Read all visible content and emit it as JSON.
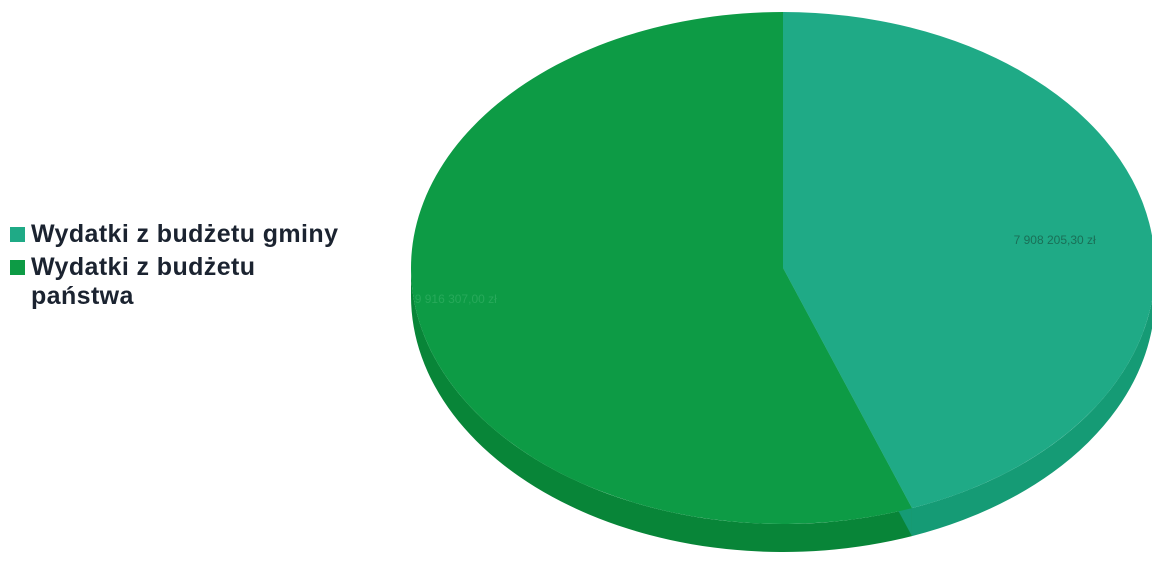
{
  "chart_data": {
    "type": "pie",
    "title": "",
    "legend_position": "left",
    "series": [
      {
        "name": "Wydatki z budżetu gminy",
        "value": 7908205.3,
        "label": "7 908 205,30 zł",
        "color": "#1faa86",
        "side_color": "#159b75",
        "label_color": "#1a6f57"
      },
      {
        "name": "Wydatki z budżetu państwa",
        "value": 9916307.0,
        "label": "9 916 307,00 zł",
        "color": "#0d9b45",
        "side_color": "#088538",
        "label_color": "#27a95a"
      }
    ]
  }
}
